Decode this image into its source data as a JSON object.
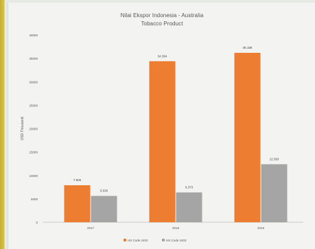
{
  "chart_data": {
    "type": "bar",
    "title": "Nilai Ekspor Indonesia - Australia",
    "subtitle": "Tobacco Product",
    "ylabel": "USD Thousand",
    "xlabel": "",
    "categories": [
      "2017",
      "2018",
      "2019"
    ],
    "series": [
      {
        "name": "HS Code 2402",
        "color": "#ed7d31",
        "values": [
          7906,
          34394,
          36188
        ],
        "labels": [
          "7.906",
          "34.394",
          "36.188"
        ]
      },
      {
        "name": "HS Code 2403",
        "color": "#a5a5a5",
        "values": [
          5630,
          6373,
          12393
        ],
        "labels": [
          "5.630",
          "6.373",
          "12.393"
        ]
      }
    ],
    "yticks": [
      "0",
      "5000",
      "10000",
      "15000",
      "20000",
      "25000",
      "30000",
      "35000",
      "40000"
    ],
    "ylim": [
      0,
      40000
    ],
    "grid": false,
    "legend_position": "bottom"
  }
}
